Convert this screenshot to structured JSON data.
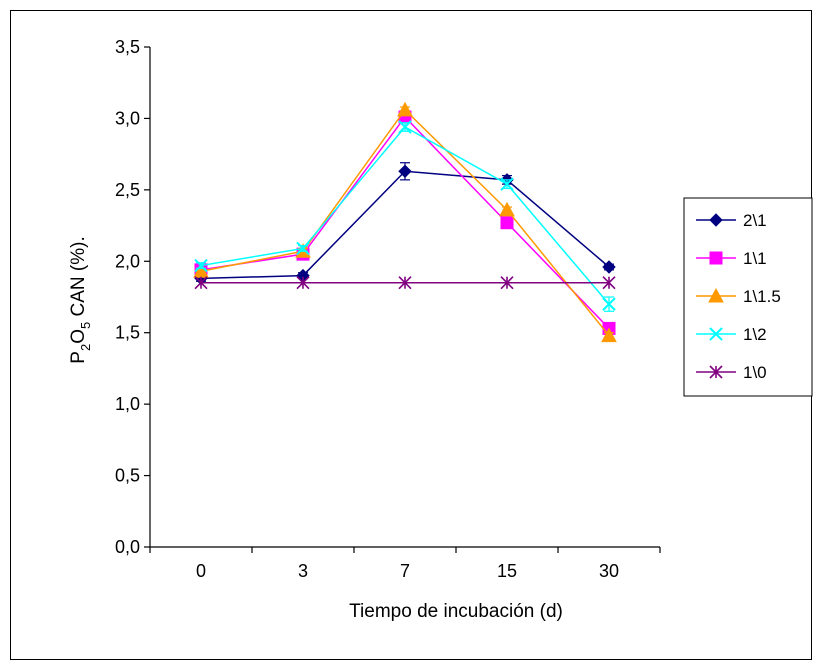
{
  "chart_data": {
    "type": "line",
    "categories": [
      "0",
      "3",
      "7",
      "15",
      "30"
    ],
    "xlabel": "Tiempo de  incubación (d)",
    "ylabel": {
      "p1": "P",
      "s1": "2",
      "p2": "O",
      "s2": "5",
      "p3": " CAN (%)."
    },
    "ylim": [
      0,
      3.5
    ],
    "yticks": [
      "0,0",
      "0,5",
      "1,0",
      "1,5",
      "2,0",
      "2,5",
      "3,0",
      "3,5"
    ],
    "ytick_values": [
      0,
      0.5,
      1.0,
      1.5,
      2.0,
      2.5,
      3.0,
      3.5
    ],
    "grid": false,
    "legend_position": "right",
    "series": [
      {
        "name": "2\\1",
        "values": [
          1.88,
          1.9,
          2.63,
          2.57,
          1.96
        ],
        "errors": [
          0.02,
          0.02,
          0.06,
          0.03,
          0.02
        ],
        "color": "#000080",
        "marker": "diamond"
      },
      {
        "name": "1\\1",
        "values": [
          1.94,
          2.05,
          3.01,
          2.27,
          1.53
        ],
        "errors": [
          0.02,
          0.02,
          0.02,
          0.02,
          0.02
        ],
        "color": "#FF00FF",
        "marker": "square"
      },
      {
        "name": "1\\1.5",
        "values": [
          1.93,
          2.07,
          3.06,
          2.36,
          1.48
        ],
        "errors": [
          0.02,
          0.02,
          0.02,
          0.02,
          0.02
        ],
        "color": "#FF9900",
        "marker": "triangle"
      },
      {
        "name": "1\\2",
        "values": [
          1.97,
          2.09,
          2.94,
          2.54,
          1.7
        ],
        "errors": [
          0.02,
          0.02,
          0.03,
          0.03,
          0.05
        ],
        "color": "#00FFFF",
        "marker": "x"
      },
      {
        "name": "1\\0",
        "values": [
          1.85,
          1.85,
          1.85,
          1.85,
          1.85
        ],
        "errors": [
          0,
          0,
          0,
          0,
          0
        ],
        "color": "#800080",
        "marker": "star"
      }
    ]
  }
}
